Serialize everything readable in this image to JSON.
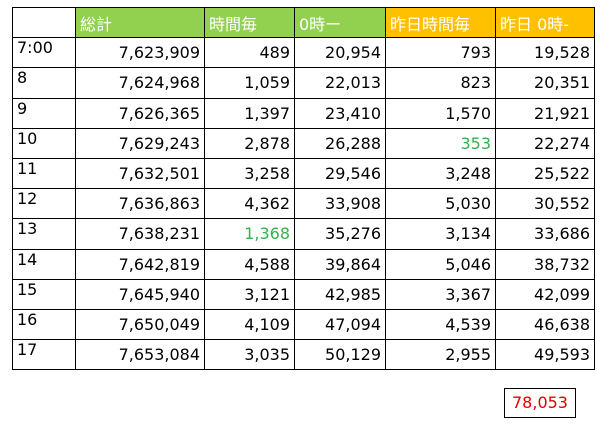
{
  "headers": [
    "",
    "総計",
    "時間毎",
    "0時ー",
    "昨日時間毎",
    "昨日 0時-"
  ],
  "rows": [
    {
      "hour": "7:00",
      "total": "7,623,909",
      "hourly": "489",
      "since0": "20,954",
      "yhourly": "793",
      "ysince0": "19,528"
    },
    {
      "hour": "8",
      "total": "7,624,968",
      "hourly": "1,059",
      "since0": "22,013",
      "yhourly": "823",
      "ysince0": "20,351"
    },
    {
      "hour": "9",
      "total": "7,626,365",
      "hourly": "1,397",
      "since0": "23,410",
      "yhourly": "1,570",
      "ysince0": "21,921"
    },
    {
      "hour": "10",
      "total": "7,629,243",
      "hourly": "2,878",
      "since0": "26,288",
      "yhourly": "353",
      "ysince0": "22,274"
    },
    {
      "hour": "11",
      "total": "7,632,501",
      "hourly": "3,258",
      "since0": "29,546",
      "yhourly": "3,248",
      "ysince0": "25,522"
    },
    {
      "hour": "12",
      "total": "7,636,863",
      "hourly": "4,362",
      "since0": "33,908",
      "yhourly": "5,030",
      "ysince0": "30,552"
    },
    {
      "hour": "13",
      "total": "7,638,231",
      "hourly": "1,368",
      "since0": "35,276",
      "yhourly": "3,134",
      "ysince0": "33,686"
    },
    {
      "hour": "14",
      "total": "7,642,819",
      "hourly": "4,588",
      "since0": "39,864",
      "yhourly": "5,046",
      "ysince0": "38,732"
    },
    {
      "hour": "15",
      "total": "7,645,940",
      "hourly": "3,121",
      "since0": "42,985",
      "yhourly": "3,367",
      "ysince0": "42,099"
    },
    {
      "hour": "16",
      "total": "7,650,049",
      "hourly": "4,109",
      "since0": "47,094",
      "yhourly": "4,539",
      "ysince0": "46,638"
    },
    {
      "hour": "17",
      "total": "7,653,084",
      "hourly": "3,035",
      "since0": "50,129",
      "yhourly": "2,955",
      "ysince0": "49,593"
    }
  ],
  "highlight_total": "78,053",
  "colors": {
    "green_header": "#92d050",
    "orange_header": "#ffc000",
    "highlight_text": "#33b34a",
    "total_text": "#e00000"
  }
}
